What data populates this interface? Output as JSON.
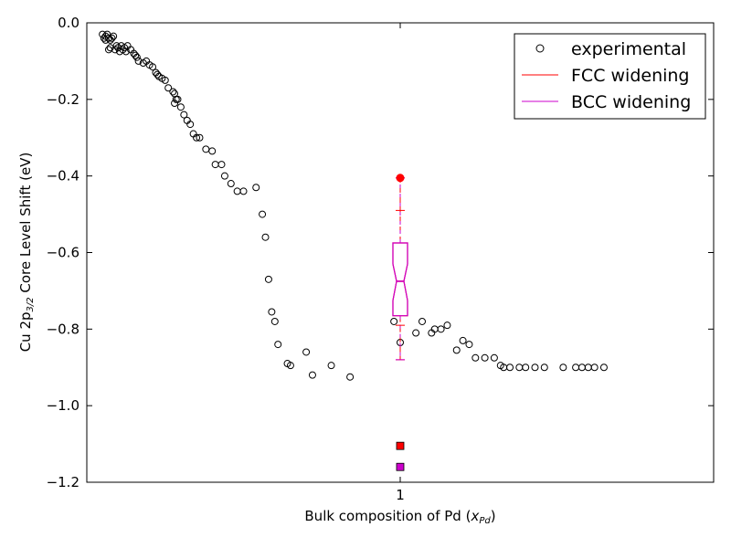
{
  "chart_data": {
    "type": "scatter",
    "xlabel_main": "Bulk composition of Pd (",
    "xlabel_var": "x",
    "xlabel_sub": "Pd",
    "xlabel_close": ")",
    "ylabel_main": "Cu 2p",
    "ylabel_sub": "3/2",
    "ylabel_rest": " Core Level Shift (eV)",
    "ylim": [
      -1.2,
      0.0
    ],
    "yticks": [
      0.0,
      -0.2,
      -0.4,
      -0.6,
      -0.8,
      -1.0,
      -1.2
    ],
    "ytick_labels": [
      "0.0",
      "−0.2",
      "−0.4",
      "−0.6",
      "−0.8",
      "−1.0",
      "−1.2"
    ],
    "xlim": [
      0.0,
      2.0
    ],
    "xticks": [
      1
    ],
    "xtick_labels": [
      "1"
    ],
    "grid": false,
    "legend_position": "top-right",
    "legend": [
      {
        "label": "experimental",
        "marker": "open-circle",
        "color": "#000000"
      },
      {
        "label": "FCC widening",
        "marker": "line",
        "color": "#ff0000"
      },
      {
        "label": "BCC widening",
        "marker": "line",
        "color": "#cc00cc"
      }
    ],
    "experimental": {
      "x": [
        0.05,
        0.06,
        0.065,
        0.07,
        0.055,
        0.075,
        0.08,
        0.06,
        0.07,
        0.085,
        0.075,
        0.09,
        0.095,
        0.1,
        0.11,
        0.12,
        0.105,
        0.115,
        0.125,
        0.13,
        0.14,
        0.15,
        0.155,
        0.16,
        0.165,
        0.18,
        0.19,
        0.2,
        0.21,
        0.22,
        0.225,
        0.23,
        0.24,
        0.25,
        0.26,
        0.275,
        0.28,
        0.285,
        0.28,
        0.29,
        0.3,
        0.31,
        0.32,
        0.33,
        0.34,
        0.35,
        0.36,
        0.38,
        0.4,
        0.41,
        0.43,
        0.44,
        0.46,
        0.48,
        0.5,
        0.54,
        0.56,
        0.57,
        0.58,
        0.59,
        0.6,
        0.61,
        0.64,
        0.65,
        0.7,
        0.72,
        0.78,
        0.84,
        0.98,
        1.0,
        1.05,
        1.07,
        1.1,
        1.11,
        1.13,
        1.15,
        1.18,
        1.2,
        1.22,
        1.24,
        1.27,
        1.3,
        1.32,
        1.33,
        1.35,
        1.38,
        1.4,
        1.43,
        1.46,
        1.52,
        1.56,
        1.58,
        1.6,
        1.62,
        1.65
      ],
      "y": [
        -0.03,
        -0.035,
        -0.03,
        -0.04,
        -0.04,
        -0.045,
        -0.04,
        -0.045,
        -0.07,
        -0.035,
        -0.065,
        -0.07,
        -0.06,
        -0.065,
        -0.06,
        -0.065,
        -0.075,
        -0.07,
        -0.075,
        -0.06,
        -0.07,
        -0.08,
        -0.085,
        -0.09,
        -0.1,
        -0.105,
        -0.1,
        -0.11,
        -0.115,
        -0.13,
        -0.135,
        -0.14,
        -0.145,
        -0.15,
        -0.17,
        -0.18,
        -0.185,
        -0.2,
        -0.21,
        -0.2,
        -0.22,
        -0.24,
        -0.255,
        -0.265,
        -0.29,
        -0.3,
        -0.3,
        -0.33,
        -0.335,
        -0.37,
        -0.37,
        -0.4,
        -0.42,
        -0.44,
        -0.44,
        -0.43,
        -0.5,
        -0.56,
        -0.67,
        -0.755,
        -0.78,
        -0.84,
        -0.89,
        -0.895,
        -0.86,
        -0.92,
        -0.895,
        -0.925,
        -0.78,
        -0.835,
        -0.81,
        -0.78,
        -0.81,
        -0.8,
        -0.8,
        -0.79,
        -0.855,
        -0.83,
        -0.84,
        -0.875,
        -0.875,
        -0.875,
        -0.895,
        -0.9,
        -0.9,
        -0.9,
        -0.9,
        -0.9,
        -0.9,
        -0.9,
        -0.9,
        -0.9,
        -0.9,
        -0.9,
        -0.9
      ]
    },
    "box": {
      "x": 1,
      "q1": -0.765,
      "median": -0.675,
      "q3": -0.575,
      "notch_low": -0.725,
      "notch_high": -0.63,
      "whisker_low": -0.88,
      "whisker_high": -0.405,
      "fcc_color": "#ff0000",
      "bcc_color": "#cc00cc"
    },
    "points": [
      {
        "x": 1,
        "y": -0.405,
        "color": "#ff0000",
        "marker": "circle"
      },
      {
        "x": 1,
        "y": -1.105,
        "color": "#ff0000",
        "marker": "square"
      },
      {
        "x": 1,
        "y": -1.16,
        "color": "#cc00cc",
        "marker": "square"
      }
    ]
  }
}
